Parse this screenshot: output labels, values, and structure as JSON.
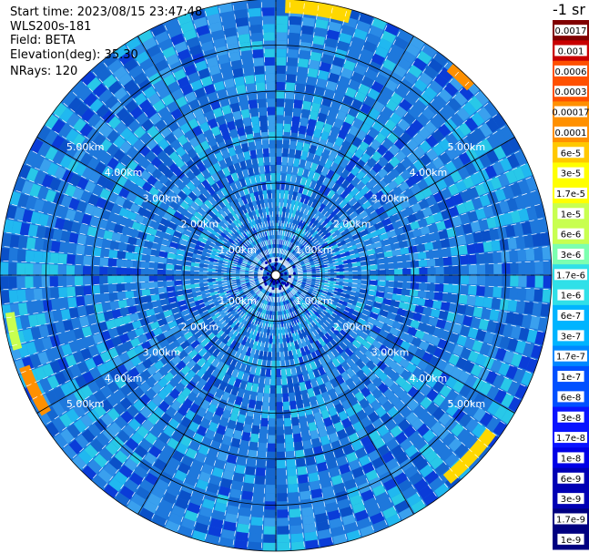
{
  "header": {
    "start_time": "Start time: 2023/08/15 23:47:48",
    "instrument": "WLS200s-181",
    "field": "Field: BETA",
    "elevation": "Elevation(deg): 35.30",
    "nrays": "NRays: 120"
  },
  "colorbar": {
    "unit": "-1 sr",
    "ticks": [
      "0.0017",
      "0.001",
      "0.0006",
      "0.0003",
      "0.00017",
      "0.0001",
      "6e-5",
      "3e-5",
      "1.7e-5",
      "1e-5",
      "6e-6",
      "3e-6",
      "1.7e-6",
      "1e-6",
      "6e-7",
      "3e-7",
      "1.7e-7",
      "1e-7",
      "6e-8",
      "3e-8",
      "1.7e-8",
      "1e-8",
      "6e-9",
      "3e-9",
      "1.7e-9",
      "1e-9"
    ]
  },
  "chart_data": {
    "type": "heatmap",
    "projection": "polar-ppi",
    "field": "BETA",
    "n_rays": 120,
    "max_range_km": 6,
    "range_ring_labels": [
      "1.00km",
      "2.00km",
      "3.00km",
      "4.00km",
      "5.00km"
    ],
    "grid": true,
    "colors": {
      "background_field": "#1e78dc",
      "ring_color": "#000000",
      "ray_color": "#ffffff"
    },
    "colorscale": [
      "#000080",
      "#0000b4",
      "#0000e6",
      "#0a14ff",
      "#0050ff",
      "#0088ff",
      "#00b4ff",
      "#30e0e8",
      "#7cffb0",
      "#c8ff50",
      "#ffff00",
      "#ffc800",
      "#ff9000",
      "#ff5000",
      "#c80000",
      "#800000"
    ],
    "value_range": [
      "1e-9",
      "0.0017"
    ]
  }
}
